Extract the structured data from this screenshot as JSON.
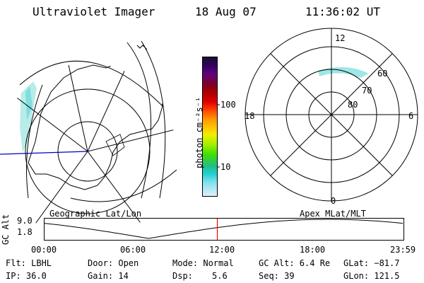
{
  "header": {
    "title": "Ultraviolet Imager",
    "date": "18 Aug 07",
    "time": "11:36:02 UT"
  },
  "colorbar": {
    "unit_label": "photon cm⁻²s⁻¹",
    "ticks": [
      "100",
      "10"
    ],
    "colors": [
      "#1a1030",
      "#300060",
      "#600080",
      "#800020",
      "#b00000",
      "#e00000",
      "#ff4000",
      "#ff9000",
      "#ffc000",
      "#f0f000",
      "#a0f000",
      "#40e000",
      "#20c080",
      "#20d0d0",
      "#80e0f0",
      "#e0f0f8"
    ]
  },
  "left_panel": {
    "label": "Geographic Lat/Lon"
  },
  "right_panel": {
    "label": "Apex MLat/MLT",
    "mlt_labels": [
      "12",
      "18",
      "6",
      "0"
    ],
    "mlat_labels": [
      "60",
      "70",
      "80"
    ]
  },
  "altitude_plot": {
    "ylabel": "GC Alt",
    "yticks": [
      "9.0",
      "1.8"
    ],
    "xticks": [
      "00:00",
      "06:00",
      "12:00",
      "18:00",
      "23:59"
    ],
    "current_time_hours": 11.6,
    "curve_color": "#000000",
    "marker_color": "#ff0000"
  },
  "footer": {
    "row1": {
      "flt": "Flt: LBHL",
      "door": "Door: Open",
      "mode": "Mode: Normal",
      "gcalt": "GC Alt: 6.4 Re",
      "glat": "GLat: −81.7"
    },
    "row2": {
      "ip": "IP: 36.0",
      "gain": "Gain: 14",
      "dsp_label": "Dsp:",
      "dsp_value": "5.6",
      "seq": "Seq: 39",
      "glon": "GLon: 121.5"
    }
  }
}
